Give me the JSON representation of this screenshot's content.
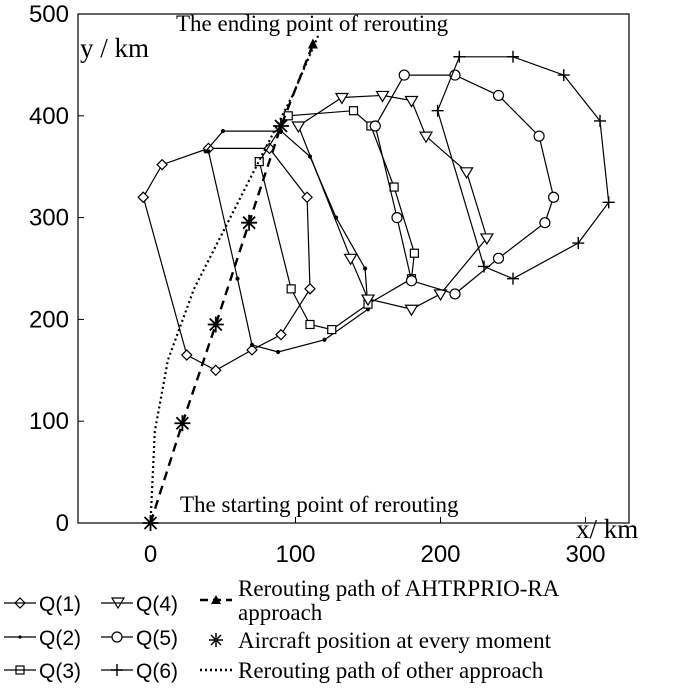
{
  "chart_data": {
    "type": "line",
    "xlabel": "x/ km",
    "ylabel": "y / km",
    "xlim": [
      -50,
      330
    ],
    "ylim": [
      0,
      500
    ],
    "xticks": [
      "0",
      "100",
      "200",
      "300"
    ],
    "yticks": [
      "0",
      "100",
      "200",
      "300",
      "400",
      "500"
    ],
    "grid": false,
    "legend_position": "bottom",
    "annotations": {
      "end": "The ending point of rerouting",
      "start": "The starting point of rerouting"
    },
    "series": [
      {
        "name": "Q(1)",
        "marker": "diamond",
        "x": [
          -5,
          8,
          40,
          82,
          108,
          110,
          90,
          70,
          45,
          25,
          -5,
          -5
        ],
        "y": [
          320,
          352,
          368,
          368,
          320,
          230,
          185,
          170,
          150,
          165,
          320,
          320
        ]
      },
      {
        "name": "Q(2)",
        "marker": "point",
        "x": [
          38,
          50,
          90,
          110,
          128,
          148,
          150,
          120,
          88,
          70,
          60,
          40
        ],
        "y": [
          365,
          385,
          385,
          360,
          300,
          250,
          210,
          180,
          168,
          175,
          240,
          365
        ]
      },
      {
        "name": "Q(3)",
        "marker": "square",
        "x": [
          75,
          95,
          140,
          152,
          168,
          182,
          180,
          150,
          125,
          110,
          97,
          75
        ],
        "y": [
          355,
          400,
          405,
          390,
          330,
          265,
          240,
          215,
          190,
          195,
          230,
          355
        ]
      },
      {
        "name": "Q(4)",
        "marker": "triangle-down",
        "x": [
          102,
          132,
          160,
          180,
          190,
          218,
          232,
          200,
          180,
          150,
          138,
          102
        ],
        "y": [
          390,
          418,
          420,
          415,
          380,
          345,
          280,
          225,
          210,
          220,
          260,
          390
        ]
      },
      {
        "name": "Q(5)",
        "marker": "circle",
        "x": [
          155,
          175,
          210,
          240,
          268,
          278,
          272,
          240,
          210,
          180,
          170,
          155
        ],
        "y": [
          390,
          440,
          440,
          420,
          380,
          320,
          295,
          260,
          225,
          238,
          300,
          390
        ]
      },
      {
        "name": "Q(6)",
        "marker": "plus",
        "x": [
          198,
          213,
          250,
          285,
          310,
          316,
          295,
          250,
          230,
          198
        ],
        "y": [
          405,
          458,
          458,
          440,
          395,
          315,
          275,
          240,
          252,
          405
        ]
      },
      {
        "name": "Rerouting path of AHTRPRIO-RA approach",
        "style": "dashed",
        "x": [
          0,
          22,
          45,
          68,
          90,
          112
        ],
        "y": [
          0,
          98,
          195,
          295,
          390,
          470
        ]
      },
      {
        "name": "Aircraft position at every moment",
        "marker": "asterisk",
        "x": [
          0,
          22,
          45,
          68,
          90
        ],
        "y": [
          0,
          98,
          195,
          295,
          390
        ]
      },
      {
        "name": "Rerouting path of other approach",
        "style": "dotted",
        "x": [
          0,
          3,
          12,
          30,
          55,
          80,
          98,
          116
        ],
        "y": [
          0,
          90,
          160,
          230,
          300,
          370,
          420,
          480
        ]
      }
    ]
  },
  "legend": {
    "q1": "Q(1)",
    "q2": "Q(2)",
    "q3": "Q(3)",
    "q4": "Q(4)",
    "q5": "Q(5)",
    "q6": "Q(6)",
    "ahtr_line1": "Rerouting path of AHTRPRIO-RA",
    "ahtr_line2": "approach",
    "aircraft": "Aircraft position at every moment",
    "other": "Rerouting path of other approach"
  }
}
